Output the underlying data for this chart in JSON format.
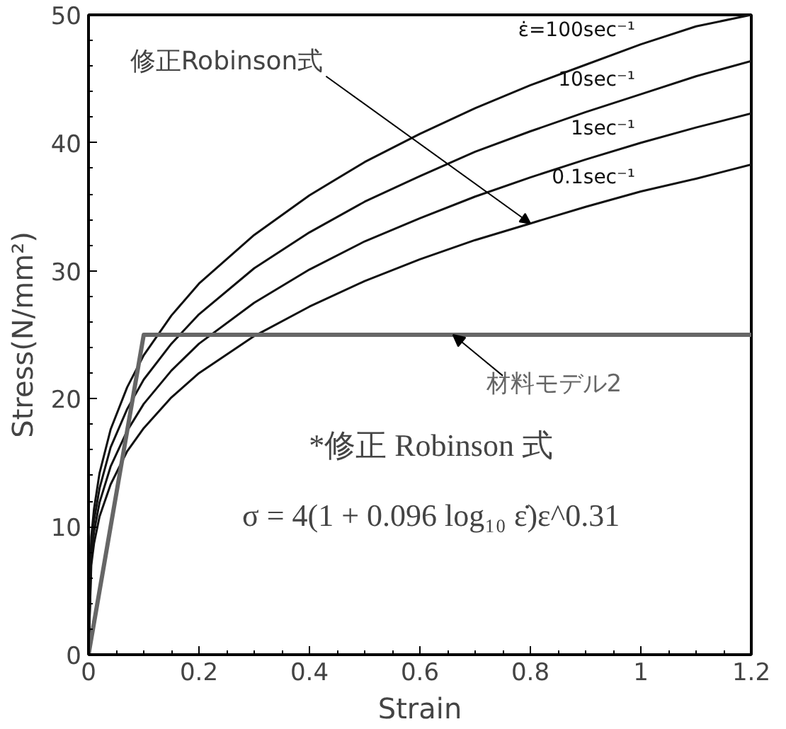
{
  "chart_data": {
    "type": "line",
    "xlabel": "Strain",
    "ylabel": "Stress(N/mm²)",
    "x": [
      0,
      0.005,
      0.01,
      0.02,
      0.04,
      0.07,
      0.1,
      0.15,
      0.2,
      0.3,
      0.4,
      0.5,
      0.6,
      0.7,
      0.8,
      0.9,
      1.0,
      1.1,
      1.2
    ],
    "series": [
      {
        "name": "ε̇=100sec⁻¹",
        "color": "#111111",
        "values": [
          0,
          9.2,
          11.4,
          14.2,
          17.6,
          20.9,
          23.4,
          26.5,
          29.0,
          32.8,
          35.9,
          38.5,
          40.7,
          42.7,
          44.5,
          46.1,
          47.7,
          49.1,
          50.0
        ]
      },
      {
        "name": "10sec⁻¹",
        "color": "#111111",
        "values": [
          0,
          8.5,
          10.5,
          13.0,
          16.2,
          19.2,
          21.5,
          24.3,
          26.6,
          30.2,
          33.0,
          35.4,
          37.4,
          39.3,
          40.9,
          42.4,
          43.8,
          45.2,
          46.4
        ]
      },
      {
        "name": "1sec⁻¹",
        "color": "#111111",
        "values": [
          0,
          7.7,
          9.6,
          11.9,
          14.7,
          17.5,
          19.6,
          22.2,
          24.3,
          27.5,
          30.1,
          32.3,
          34.1,
          35.8,
          37.3,
          38.7,
          40.0,
          41.2,
          42.3
        ]
      },
      {
        "name": "0.1sec⁻¹",
        "color": "#111111",
        "values": [
          0,
          7.0,
          8.7,
          10.8,
          13.3,
          15.9,
          17.7,
          20.1,
          22.0,
          24.9,
          27.2,
          29.2,
          30.9,
          32.4,
          33.7,
          35.0,
          36.2,
          37.2,
          38.3
        ]
      },
      {
        "name": "材料モデル2",
        "color": "#666666",
        "x": [
          0,
          0.1,
          1.2
        ],
        "values": [
          0,
          25,
          25
        ]
      }
    ],
    "xlim": [
      0,
      1.2
    ],
    "ylim": [
      0,
      50
    ],
    "xticks": [
      0,
      {
        "value": 0.2,
        "label": "0.2"
      },
      {
        "value": 0.4,
        "label": "0.4"
      },
      {
        "value": 0.6,
        "label": "0.6"
      },
      {
        "value": 0.8,
        "label": "0.8"
      },
      1,
      1.2
    ],
    "yticks": [
      0,
      10,
      20,
      30,
      40,
      50
    ],
    "annotations": [
      {
        "text": "修正Robinson式",
        "x": 0.8,
        "y": 33.7
      },
      "*修正 Robinson 式",
      "σ = 4(1 + 0.096 log₁₀ ε̇)ε^0.31"
    ],
    "grid": false,
    "marker": "none",
    "line_style": "solid"
  }
}
